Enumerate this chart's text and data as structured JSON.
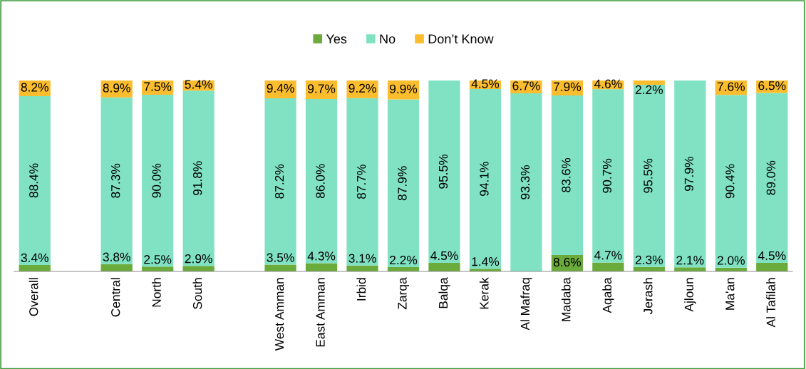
{
  "chart_data": {
    "type": "bar",
    "stacked": true,
    "legend": "top",
    "grid": false,
    "tick_labels": "x",
    "ylim": [
      0,
      100
    ],
    "categories": [
      "Overall",
      null,
      "Central",
      "North",
      "South",
      null,
      "West Amman",
      "East Amman",
      "Irbid",
      "Zarqa",
      "Balqa",
      "Kerak",
      "Al Mafraq",
      "Madaba",
      "Aqaba",
      "Jerash",
      "Ajloun",
      "Ma'an",
      "Al Tafilah"
    ],
    "series": [
      {
        "name": "Yes",
        "color": "#6aab3c",
        "values": [
          3.4,
          null,
          3.8,
          2.5,
          2.9,
          null,
          3.5,
          4.3,
          3.1,
          2.2,
          4.5,
          1.4,
          null,
          8.6,
          4.7,
          2.3,
          2.1,
          2.0,
          4.5
        ],
        "value_labels": [
          "3.4%",
          null,
          "3.8%",
          "2.5%",
          "2.9%",
          null,
          "3.5%",
          "4.3%",
          "3.1%",
          "2.2%",
          "4.5%",
          "1.4%",
          null,
          "8.6%",
          "4.7%",
          "2.3%",
          "2.1%",
          "2.0%",
          "4.5%"
        ]
      },
      {
        "name": "No",
        "color": "#80e2c2",
        "values": [
          88.4,
          null,
          87.3,
          90.0,
          91.8,
          null,
          87.2,
          86.0,
          87.7,
          87.9,
          95.5,
          94.1,
          93.3,
          83.6,
          90.7,
          95.5,
          97.9,
          90.4,
          89.0
        ],
        "value_labels": [
          "88.4%",
          null,
          "87.3%",
          "90.0%",
          "91.8%",
          null,
          "87.2%",
          "86.0%",
          "87.7%",
          "87.9%",
          "95.5%",
          "94.1%",
          "93.3%",
          "83.6%",
          "90.7%",
          "95.5%",
          "97.9%",
          "90.4%",
          "89.0%"
        ]
      },
      {
        "name": "Don’t Know",
        "color": "#fbbd2e",
        "values": [
          8.2,
          null,
          8.9,
          7.5,
          5.4,
          null,
          9.4,
          9.7,
          9.2,
          9.9,
          null,
          4.5,
          6.7,
          7.9,
          4.6,
          2.2,
          null,
          7.6,
          6.5
        ],
        "value_labels": [
          "8.2%",
          null,
          "8.9%",
          "7.5%",
          "5.4%",
          null,
          "9.4%",
          "9.7%",
          "9.2%",
          "9.9%",
          null,
          "4.5%",
          "6.7%",
          "7.9%",
          "4.6%",
          "2.2%",
          null,
          "7.6%",
          "6.5%"
        ]
      }
    ]
  }
}
